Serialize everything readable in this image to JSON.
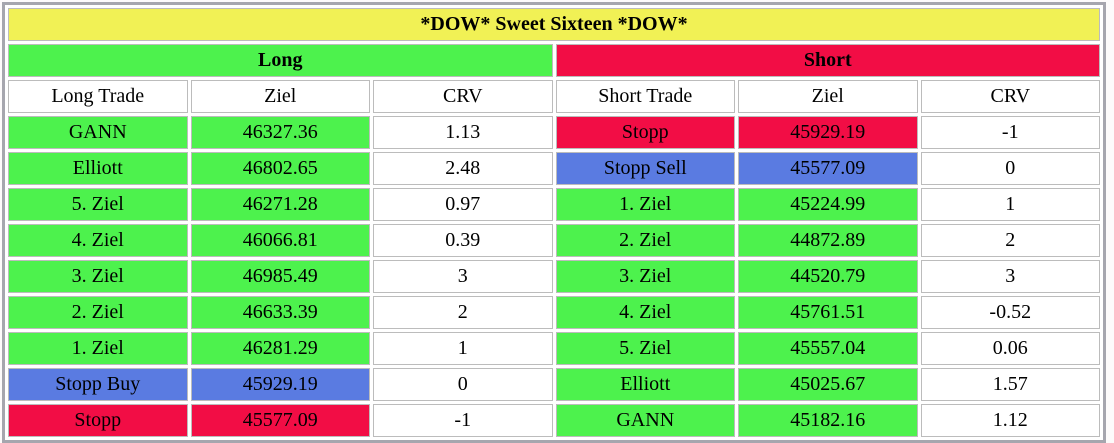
{
  "title": "*DOW* Sweet Sixteen *DOW*",
  "colors": {
    "yellow": "#f1f155",
    "green": "#4df24d",
    "red": "#f20d45",
    "blue": "#5a7be1",
    "border_outer": "#a6a6ae",
    "border_cell": "#bcbcbc",
    "text": "#000000"
  },
  "long": {
    "header": "Long",
    "columns": [
      "Long Trade",
      "Ziel",
      "CRV"
    ],
    "rows": [
      {
        "trade": "GANN",
        "ziel": "46327.36",
        "crv": "1.13",
        "color": "green"
      },
      {
        "trade": "Elliott",
        "ziel": "46802.65",
        "crv": "2.48",
        "color": "green"
      },
      {
        "trade": "5. Ziel",
        "ziel": "46271.28",
        "crv": "0.97",
        "color": "green"
      },
      {
        "trade": "4. Ziel",
        "ziel": "46066.81",
        "crv": "0.39",
        "color": "green"
      },
      {
        "trade": "3. Ziel",
        "ziel": "46985.49",
        "crv": "3",
        "color": "green"
      },
      {
        "trade": "2. Ziel",
        "ziel": "46633.39",
        "crv": "2",
        "color": "green"
      },
      {
        "trade": "1. Ziel",
        "ziel": "46281.29",
        "crv": "1",
        "color": "green"
      },
      {
        "trade": "Stopp Buy",
        "ziel": "45929.19",
        "crv": "0",
        "color": "blue"
      },
      {
        "trade": "Stopp",
        "ziel": "45577.09",
        "crv": "-1",
        "color": "red"
      }
    ]
  },
  "short": {
    "header": "Short",
    "columns": [
      "Short Trade",
      "Ziel",
      "CRV"
    ],
    "rows": [
      {
        "trade": "Stopp",
        "ziel": "45929.19",
        "crv": "-1",
        "color": "red"
      },
      {
        "trade": "Stopp Sell",
        "ziel": "45577.09",
        "crv": "0",
        "color": "blue"
      },
      {
        "trade": "1. Ziel",
        "ziel": "45224.99",
        "crv": "1",
        "color": "green"
      },
      {
        "trade": "2. Ziel",
        "ziel": "44872.89",
        "crv": "2",
        "color": "green"
      },
      {
        "trade": "3. Ziel",
        "ziel": "44520.79",
        "crv": "3",
        "color": "green"
      },
      {
        "trade": "4. Ziel",
        "ziel": "45761.51",
        "crv": "-0.52",
        "color": "green"
      },
      {
        "trade": "5. Ziel",
        "ziel": "45557.04",
        "crv": "0.06",
        "color": "green"
      },
      {
        "trade": "Elliott",
        "ziel": "45025.67",
        "crv": "1.57",
        "color": "green"
      },
      {
        "trade": "GANN",
        "ziel": "45182.16",
        "crv": "1.12",
        "color": "green"
      }
    ]
  }
}
